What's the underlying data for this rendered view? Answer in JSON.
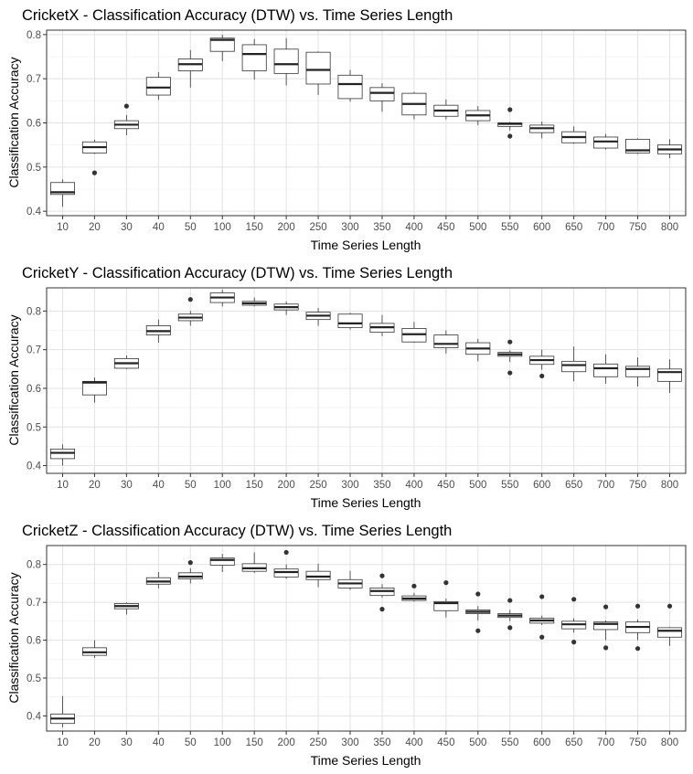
{
  "chart_data": [
    {
      "type": "box",
      "title": "CricketX - Classification Accuracy (DTW) vs. Time Series Length",
      "xlabel": "Time Series Length",
      "ylabel": "Classification Accuracy",
      "ylim": [
        0.39,
        0.81
      ],
      "yticks": [
        0.4,
        0.5,
        0.6,
        0.7,
        0.8
      ],
      "grid": true,
      "categories": [
        "10",
        "20",
        "30",
        "40",
        "50",
        "100",
        "150",
        "200",
        "250",
        "300",
        "350",
        "400",
        "450",
        "500",
        "550",
        "600",
        "650",
        "700",
        "750",
        "800"
      ],
      "boxes": [
        {
          "min": 0.41,
          "q1": 0.438,
          "median": 0.443,
          "q3": 0.465,
          "max": 0.472,
          "outliers": []
        },
        {
          "min": 0.53,
          "q1": 0.532,
          "median": 0.545,
          "q3": 0.557,
          "max": 0.562,
          "outliers": [
            0.487
          ]
        },
        {
          "min": 0.572,
          "q1": 0.587,
          "median": 0.596,
          "q3": 0.605,
          "max": 0.618,
          "outliers": [
            0.638
          ]
        },
        {
          "min": 0.652,
          "q1": 0.663,
          "median": 0.68,
          "q3": 0.703,
          "max": 0.715,
          "outliers": []
        },
        {
          "min": 0.68,
          "q1": 0.718,
          "median": 0.733,
          "q3": 0.745,
          "max": 0.765,
          "outliers": []
        },
        {
          "min": 0.74,
          "q1": 0.762,
          "median": 0.788,
          "q3": 0.792,
          "max": 0.8,
          "outliers": []
        },
        {
          "min": 0.698,
          "q1": 0.718,
          "median": 0.756,
          "q3": 0.777,
          "max": 0.79,
          "outliers": []
        },
        {
          "min": 0.685,
          "q1": 0.712,
          "median": 0.733,
          "q3": 0.767,
          "max": 0.792,
          "outliers": []
        },
        {
          "min": 0.663,
          "q1": 0.688,
          "median": 0.72,
          "q3": 0.76,
          "max": 0.762,
          "outliers": []
        },
        {
          "min": 0.648,
          "q1": 0.655,
          "median": 0.688,
          "q3": 0.708,
          "max": 0.72,
          "outliers": []
        },
        {
          "min": 0.625,
          "q1": 0.65,
          "median": 0.668,
          "q3": 0.68,
          "max": 0.69,
          "outliers": []
        },
        {
          "min": 0.608,
          "q1": 0.618,
          "median": 0.643,
          "q3": 0.667,
          "max": 0.67,
          "outliers": []
        },
        {
          "min": 0.608,
          "q1": 0.615,
          "median": 0.628,
          "q3": 0.64,
          "max": 0.653,
          "outliers": []
        },
        {
          "min": 0.595,
          "q1": 0.605,
          "median": 0.617,
          "q3": 0.628,
          "max": 0.638,
          "outliers": []
        },
        {
          "min": 0.583,
          "q1": 0.592,
          "median": 0.598,
          "q3": 0.6,
          "max": 0.602,
          "outliers": [
            0.63,
            0.57
          ]
        },
        {
          "min": 0.565,
          "q1": 0.578,
          "median": 0.588,
          "q3": 0.595,
          "max": 0.603,
          "outliers": []
        },
        {
          "min": 0.553,
          "q1": 0.555,
          "median": 0.568,
          "q3": 0.58,
          "max": 0.592,
          "outliers": []
        },
        {
          "min": 0.54,
          "q1": 0.543,
          "median": 0.558,
          "q3": 0.568,
          "max": 0.575,
          "outliers": []
        },
        {
          "min": 0.53,
          "q1": 0.532,
          "median": 0.538,
          "q3": 0.563,
          "max": 0.565,
          "outliers": []
        },
        {
          "min": 0.52,
          "q1": 0.53,
          "median": 0.54,
          "q3": 0.55,
          "max": 0.563,
          "outliers": []
        }
      ]
    },
    {
      "type": "box",
      "title": "CricketY - Classification Accuracy (DTW) vs. Time Series Length",
      "xlabel": "Time Series Length",
      "ylabel": "Classification Accuracy",
      "ylim": [
        0.38,
        0.86
      ],
      "yticks": [
        0.4,
        0.5,
        0.6,
        0.7,
        0.8
      ],
      "grid": true,
      "categories": [
        "10",
        "20",
        "30",
        "40",
        "50",
        "100",
        "150",
        "200",
        "250",
        "300",
        "350",
        "400",
        "450",
        "500",
        "550",
        "600",
        "650",
        "700",
        "750",
        "800"
      ],
      "boxes": [
        {
          "min": 0.4,
          "q1": 0.418,
          "median": 0.433,
          "q3": 0.443,
          "max": 0.455,
          "outliers": []
        },
        {
          "min": 0.563,
          "q1": 0.583,
          "median": 0.615,
          "q3": 0.618,
          "max": 0.628,
          "outliers": []
        },
        {
          "min": 0.65,
          "q1": 0.652,
          "median": 0.665,
          "q3": 0.677,
          "max": 0.685,
          "outliers": []
        },
        {
          "min": 0.718,
          "q1": 0.738,
          "median": 0.748,
          "q3": 0.762,
          "max": 0.778,
          "outliers": []
        },
        {
          "min": 0.762,
          "q1": 0.775,
          "median": 0.783,
          "q3": 0.792,
          "max": 0.8,
          "outliers": [
            0.83
          ]
        },
        {
          "min": 0.812,
          "q1": 0.822,
          "median": 0.835,
          "q3": 0.847,
          "max": 0.855,
          "outliers": []
        },
        {
          "min": 0.812,
          "q1": 0.815,
          "median": 0.82,
          "q3": 0.825,
          "max": 0.835,
          "outliers": []
        },
        {
          "min": 0.79,
          "q1": 0.803,
          "median": 0.81,
          "q3": 0.818,
          "max": 0.825,
          "outliers": []
        },
        {
          "min": 0.762,
          "q1": 0.778,
          "median": 0.788,
          "q3": 0.797,
          "max": 0.808,
          "outliers": []
        },
        {
          "min": 0.752,
          "q1": 0.757,
          "median": 0.768,
          "q3": 0.792,
          "max": 0.795,
          "outliers": []
        },
        {
          "min": 0.735,
          "q1": 0.745,
          "median": 0.758,
          "q3": 0.768,
          "max": 0.79,
          "outliers": []
        },
        {
          "min": 0.718,
          "q1": 0.72,
          "median": 0.74,
          "q3": 0.755,
          "max": 0.772,
          "outliers": []
        },
        {
          "min": 0.69,
          "q1": 0.705,
          "median": 0.715,
          "q3": 0.738,
          "max": 0.75,
          "outliers": []
        },
        {
          "min": 0.67,
          "q1": 0.688,
          "median": 0.703,
          "q3": 0.718,
          "max": 0.728,
          "outliers": []
        },
        {
          "min": 0.668,
          "q1": 0.683,
          "median": 0.688,
          "q3": 0.693,
          "max": 0.698,
          "outliers": [
            0.72,
            0.64
          ]
        },
        {
          "min": 0.648,
          "q1": 0.662,
          "median": 0.673,
          "q3": 0.683,
          "max": 0.7,
          "outliers": [
            0.632
          ]
        },
        {
          "min": 0.618,
          "q1": 0.643,
          "median": 0.66,
          "q3": 0.67,
          "max": 0.708,
          "outliers": []
        },
        {
          "min": 0.612,
          "q1": 0.63,
          "median": 0.652,
          "q3": 0.663,
          "max": 0.688,
          "outliers": []
        },
        {
          "min": 0.605,
          "q1": 0.63,
          "median": 0.65,
          "q3": 0.657,
          "max": 0.68,
          "outliers": []
        },
        {
          "min": 0.588,
          "q1": 0.618,
          "median": 0.642,
          "q3": 0.65,
          "max": 0.675,
          "outliers": []
        }
      ]
    },
    {
      "type": "box",
      "title": "CricketZ - Classification Accuracy (DTW) vs. Time Series Length",
      "xlabel": "Time Series Length",
      "ylabel": "Classification Accuracy",
      "ylim": [
        0.36,
        0.85
      ],
      "yticks": [
        0.4,
        0.5,
        0.6,
        0.7,
        0.8
      ],
      "grid": true,
      "categories": [
        "10",
        "20",
        "30",
        "40",
        "50",
        "100",
        "150",
        "200",
        "250",
        "300",
        "350",
        "400",
        "450",
        "500",
        "550",
        "600",
        "650",
        "700",
        "750",
        "800"
      ],
      "boxes": [
        {
          "min": 0.37,
          "q1": 0.38,
          "median": 0.393,
          "q3": 0.405,
          "max": 0.452,
          "outliers": []
        },
        {
          "min": 0.553,
          "q1": 0.56,
          "median": 0.568,
          "q3": 0.58,
          "max": 0.6,
          "outliers": []
        },
        {
          "min": 0.668,
          "q1": 0.683,
          "median": 0.69,
          "q3": 0.697,
          "max": 0.7,
          "outliers": []
        },
        {
          "min": 0.737,
          "q1": 0.748,
          "median": 0.755,
          "q3": 0.765,
          "max": 0.78,
          "outliers": []
        },
        {
          "min": 0.75,
          "q1": 0.762,
          "median": 0.768,
          "q3": 0.778,
          "max": 0.79,
          "outliers": [
            0.805
          ]
        },
        {
          "min": 0.78,
          "q1": 0.798,
          "median": 0.812,
          "q3": 0.817,
          "max": 0.828,
          "outliers": []
        },
        {
          "min": 0.778,
          "q1": 0.782,
          "median": 0.79,
          "q3": 0.802,
          "max": 0.832,
          "outliers": []
        },
        {
          "min": 0.762,
          "q1": 0.767,
          "median": 0.78,
          "q3": 0.788,
          "max": 0.8,
          "outliers": [
            0.832
          ]
        },
        {
          "min": 0.74,
          "q1": 0.76,
          "median": 0.768,
          "q3": 0.782,
          "max": 0.802,
          "outliers": []
        },
        {
          "min": 0.733,
          "q1": 0.738,
          "median": 0.75,
          "q3": 0.76,
          "max": 0.783,
          "outliers": []
        },
        {
          "min": 0.712,
          "q1": 0.718,
          "median": 0.73,
          "q3": 0.738,
          "max": 0.748,
          "outliers": [
            0.77,
            0.682
          ]
        },
        {
          "min": 0.702,
          "q1": 0.705,
          "median": 0.71,
          "q3": 0.717,
          "max": 0.725,
          "outliers": [
            0.743
          ]
        },
        {
          "min": 0.66,
          "q1": 0.678,
          "median": 0.698,
          "q3": 0.702,
          "max": 0.71,
          "outliers": [
            0.752
          ]
        },
        {
          "min": 0.652,
          "q1": 0.67,
          "median": 0.675,
          "q3": 0.68,
          "max": 0.69,
          "outliers": [
            0.722,
            0.625
          ]
        },
        {
          "min": 0.65,
          "q1": 0.66,
          "median": 0.665,
          "q3": 0.67,
          "max": 0.68,
          "outliers": [
            0.705,
            0.633
          ]
        },
        {
          "min": 0.64,
          "q1": 0.645,
          "median": 0.652,
          "q3": 0.658,
          "max": 0.665,
          "outliers": [
            0.715,
            0.608
          ]
        },
        {
          "min": 0.62,
          "q1": 0.63,
          "median": 0.642,
          "q3": 0.65,
          "max": 0.658,
          "outliers": [
            0.708,
            0.595
          ]
        },
        {
          "min": 0.6,
          "q1": 0.628,
          "median": 0.643,
          "q3": 0.648,
          "max": 0.652,
          "outliers": [
            0.688,
            0.58
          ]
        },
        {
          "min": 0.6,
          "q1": 0.62,
          "median": 0.635,
          "q3": 0.648,
          "max": 0.655,
          "outliers": [
            0.69,
            0.578
          ]
        },
        {
          "min": 0.585,
          "q1": 0.608,
          "median": 0.625,
          "q3": 0.633,
          "max": 0.635,
          "outliers": [
            0.69
          ]
        }
      ]
    }
  ]
}
